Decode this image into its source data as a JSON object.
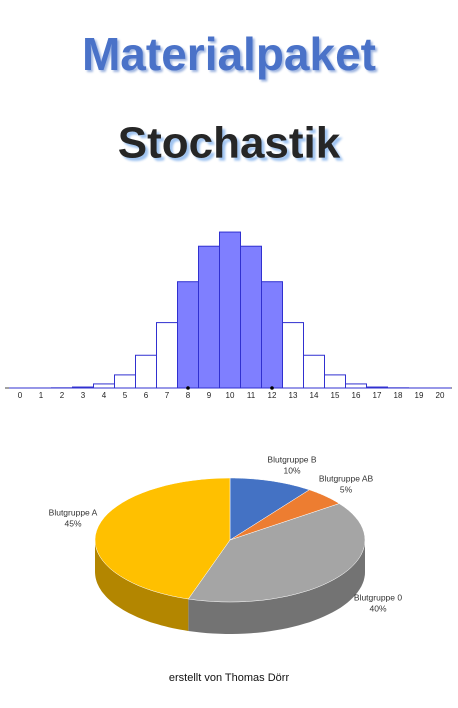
{
  "title": "Materialpaket",
  "subtitle": "Stochastik",
  "footer": "erstellt von Thomas Dörr",
  "chart_data": [
    {
      "type": "histogram",
      "x": [
        0,
        1,
        2,
        3,
        4,
        5,
        6,
        7,
        8,
        9,
        10,
        11,
        12,
        13,
        14,
        15,
        16,
        17,
        18,
        19,
        20
      ],
      "values": [
        1e-06,
        2e-05,
        0.0002,
        0.0011,
        0.0046,
        0.0148,
        0.037,
        0.0739,
        0.1201,
        0.1602,
        0.1762,
        0.1602,
        0.1201,
        0.0739,
        0.037,
        0.0148,
        0.0046,
        0.0011,
        0.0002,
        2e-05,
        1e-06
      ],
      "markers": [
        8,
        12
      ],
      "color": "#7f7fff",
      "edge_color": "#3030d0"
    },
    {
      "type": "pie",
      "categories": [
        "Blutgruppe B",
        "Blutgruppe AB",
        "Blutgruppe 0",
        "Blutgruppe A"
      ],
      "values": [
        10,
        5,
        40,
        45
      ],
      "value_labels": [
        "10%",
        "5%",
        "40%",
        "45%"
      ],
      "colors": [
        "#4472c4",
        "#ed7d31",
        "#a5a5a5",
        "#ffc000"
      ]
    }
  ]
}
